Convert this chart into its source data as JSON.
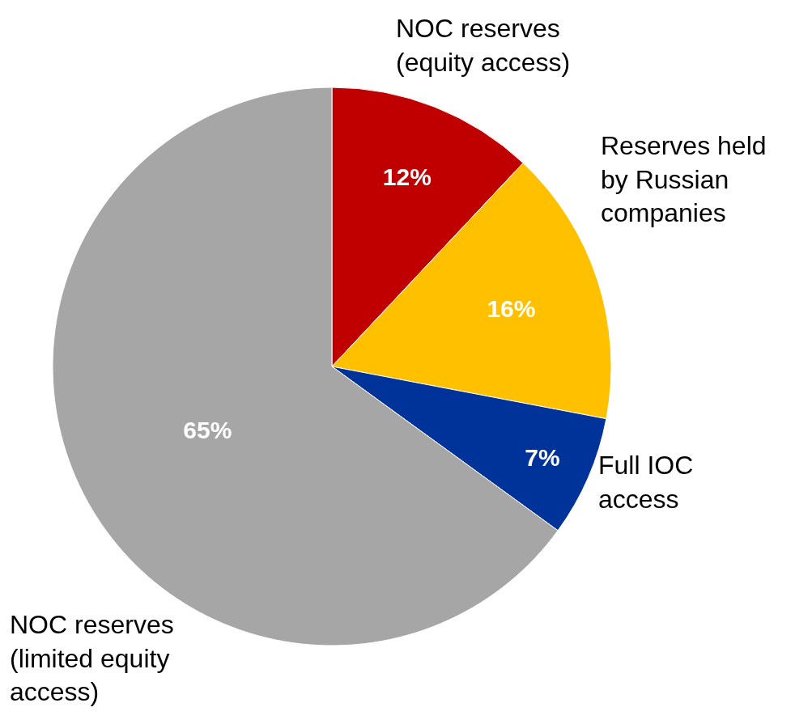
{
  "chart_data": {
    "type": "pie",
    "categories": [
      "NOC reserves\n(equity access)",
      "Reserves held\nby Russian\ncompanies",
      "Full IOC\naccess",
      "NOC reserves\n(limited equity\naccess)"
    ],
    "values": [
      12,
      16,
      7,
      65
    ],
    "value_labels": [
      "12%",
      "16%",
      "7%",
      "65%"
    ],
    "colors": [
      "#c00000",
      "#ffc000",
      "#003399",
      "#a6a6a6"
    ],
    "legend": false
  }
}
